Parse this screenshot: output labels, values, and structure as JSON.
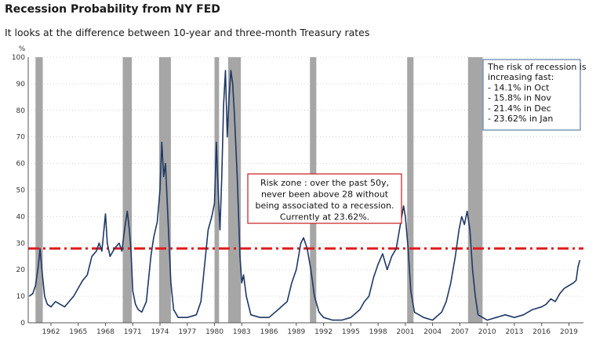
{
  "title": "Recession Probability from NY FED",
  "subtitle": "It looks at the difference between 10-year and three-month Treasury rates",
  "chart_data": {
    "type": "line",
    "ylabel": "%",
    "ylim": [
      0,
      100
    ],
    "yticks": [
      0,
      10,
      20,
      30,
      40,
      50,
      60,
      70,
      80,
      90,
      100
    ],
    "xlim": [
      1959.5,
      2020.6
    ],
    "xticks": [
      "1962",
      "1965",
      "1968",
      "1971",
      "1974",
      "1977",
      "1980",
      "1983",
      "1986",
      "1989",
      "1992",
      "1995",
      "1998",
      "2001",
      "2004",
      "2007",
      "2010",
      "2013",
      "2016",
      "2019"
    ],
    "grid": "horizontal dotted",
    "threshold": {
      "value": 28,
      "color": "#e11a1a",
      "style": "dash-dot"
    },
    "recessions": [
      [
        1960.3,
        1961.1
      ],
      [
        1969.9,
        1970.9
      ],
      [
        1973.9,
        1975.2
      ],
      [
        1980.0,
        1980.5
      ],
      [
        1981.5,
        1982.9
      ],
      [
        1990.5,
        1991.2
      ],
      [
        2001.2,
        2001.9
      ],
      [
        2007.9,
        2009.5
      ]
    ],
    "series": [
      {
        "color": "#1f3864",
        "points": [
          [
            1959.6,
            10
          ],
          [
            1960.0,
            11
          ],
          [
            1960.3,
            14
          ],
          [
            1960.6,
            21
          ],
          [
            1960.8,
            28
          ],
          [
            1961.0,
            20
          ],
          [
            1961.3,
            10
          ],
          [
            1961.6,
            7
          ],
          [
            1962.0,
            6
          ],
          [
            1962.5,
            8
          ],
          [
            1963.0,
            7
          ],
          [
            1963.5,
            6
          ],
          [
            1964.0,
            8
          ],
          [
            1964.5,
            10
          ],
          [
            1965.0,
            13
          ],
          [
            1965.5,
            16
          ],
          [
            1966.0,
            18
          ],
          [
            1966.5,
            25
          ],
          [
            1967.0,
            27
          ],
          [
            1967.3,
            30
          ],
          [
            1967.6,
            27
          ],
          [
            1967.8,
            34
          ],
          [
            1968.0,
            41
          ],
          [
            1968.2,
            30
          ],
          [
            1968.5,
            25
          ],
          [
            1969.0,
            28
          ],
          [
            1969.5,
            30
          ],
          [
            1969.8,
            27
          ],
          [
            1970.1,
            35
          ],
          [
            1970.4,
            42
          ],
          [
            1970.6,
            36
          ],
          [
            1970.8,
            28
          ],
          [
            1971.0,
            12
          ],
          [
            1971.3,
            7
          ],
          [
            1971.6,
            5
          ],
          [
            1972.0,
            4
          ],
          [
            1972.5,
            8
          ],
          [
            1973.0,
            25
          ],
          [
            1973.3,
            32
          ],
          [
            1973.7,
            38
          ],
          [
            1974.0,
            50
          ],
          [
            1974.2,
            68
          ],
          [
            1974.4,
            55
          ],
          [
            1974.6,
            60
          ],
          [
            1974.8,
            45
          ],
          [
            1975.0,
            30
          ],
          [
            1975.2,
            15
          ],
          [
            1975.5,
            5
          ],
          [
            1976.0,
            2
          ],
          [
            1977.0,
            2
          ],
          [
            1978.0,
            3
          ],
          [
            1978.5,
            8
          ],
          [
            1979.0,
            25
          ],
          [
            1979.3,
            35
          ],
          [
            1979.7,
            40
          ],
          [
            1980.0,
            45
          ],
          [
            1980.2,
            68
          ],
          [
            1980.4,
            50
          ],
          [
            1980.6,
            35
          ],
          [
            1980.8,
            55
          ],
          [
            1981.0,
            82
          ],
          [
            1981.2,
            95
          ],
          [
            1981.4,
            70
          ],
          [
            1981.6,
            85
          ],
          [
            1981.8,
            95
          ],
          [
            1982.0,
            90
          ],
          [
            1982.2,
            78
          ],
          [
            1982.5,
            55
          ],
          [
            1982.8,
            25
          ],
          [
            1983.0,
            15
          ],
          [
            1983.2,
            18
          ],
          [
            1983.5,
            10
          ],
          [
            1984.0,
            3
          ],
          [
            1985.0,
            2
          ],
          [
            1986.0,
            2
          ],
          [
            1987.0,
            5
          ],
          [
            1988.0,
            8
          ],
          [
            1988.5,
            15
          ],
          [
            1989.0,
            20
          ],
          [
            1989.5,
            30
          ],
          [
            1989.8,
            32
          ],
          [
            1990.2,
            28
          ],
          [
            1990.6,
            20
          ],
          [
            1991.0,
            10
          ],
          [
            1991.5,
            4
          ],
          [
            1992.0,
            2
          ],
          [
            1993.0,
            1
          ],
          [
            1994.0,
            1
          ],
          [
            1995.0,
            2
          ],
          [
            1996.0,
            5
          ],
          [
            1996.5,
            8
          ],
          [
            1997.0,
            10
          ],
          [
            1997.5,
            17
          ],
          [
            1998.0,
            22
          ],
          [
            1998.5,
            26
          ],
          [
            1999.0,
            20
          ],
          [
            1999.5,
            25
          ],
          [
            2000.0,
            28
          ],
          [
            2000.5,
            38
          ],
          [
            2000.8,
            44
          ],
          [
            2001.0,
            40
          ],
          [
            2001.3,
            28
          ],
          [
            2001.6,
            12
          ],
          [
            2002.0,
            4
          ],
          [
            2003.0,
            2
          ],
          [
            2004.0,
            1
          ],
          [
            2005.0,
            4
          ],
          [
            2005.5,
            8
          ],
          [
            2006.0,
            15
          ],
          [
            2006.5,
            25
          ],
          [
            2006.9,
            35
          ],
          [
            2007.2,
            40
          ],
          [
            2007.5,
            37
          ],
          [
            2007.8,
            42
          ],
          [
            2008.1,
            35
          ],
          [
            2008.4,
            20
          ],
          [
            2008.7,
            10
          ],
          [
            2009.0,
            3
          ],
          [
            2010.0,
            1
          ],
          [
            2011.0,
            2
          ],
          [
            2012.0,
            3
          ],
          [
            2013.0,
            2
          ],
          [
            2014.0,
            3
          ],
          [
            2015.0,
            5
          ],
          [
            2016.0,
            6
          ],
          [
            2016.5,
            7
          ],
          [
            2017.0,
            9
          ],
          [
            2017.5,
            8
          ],
          [
            2018.0,
            11
          ],
          [
            2018.5,
            13
          ],
          [
            2019.0,
            14
          ],
          [
            2019.5,
            15
          ],
          [
            2019.8,
            16
          ],
          [
            2020.0,
            21
          ],
          [
            2020.2,
            23.62
          ]
        ]
      }
    ],
    "annotations": [
      {
        "id": "risk",
        "border": "#cc1a1a",
        "lines": [
          "Risk zone : over the past 50y,",
          "never been above 28 without",
          "being associated to a recession.",
          "Currently at 23.62%."
        ]
      },
      {
        "id": "fast",
        "border": "#5a7fa8",
        "lines": [
          "The risk of recession is",
          "increasing fast:",
          "- 14.1% in Oct",
          "- 15.8% in Nov",
          "- 21.4% in Dec",
          "- 23.62% in Jan"
        ]
      }
    ]
  }
}
